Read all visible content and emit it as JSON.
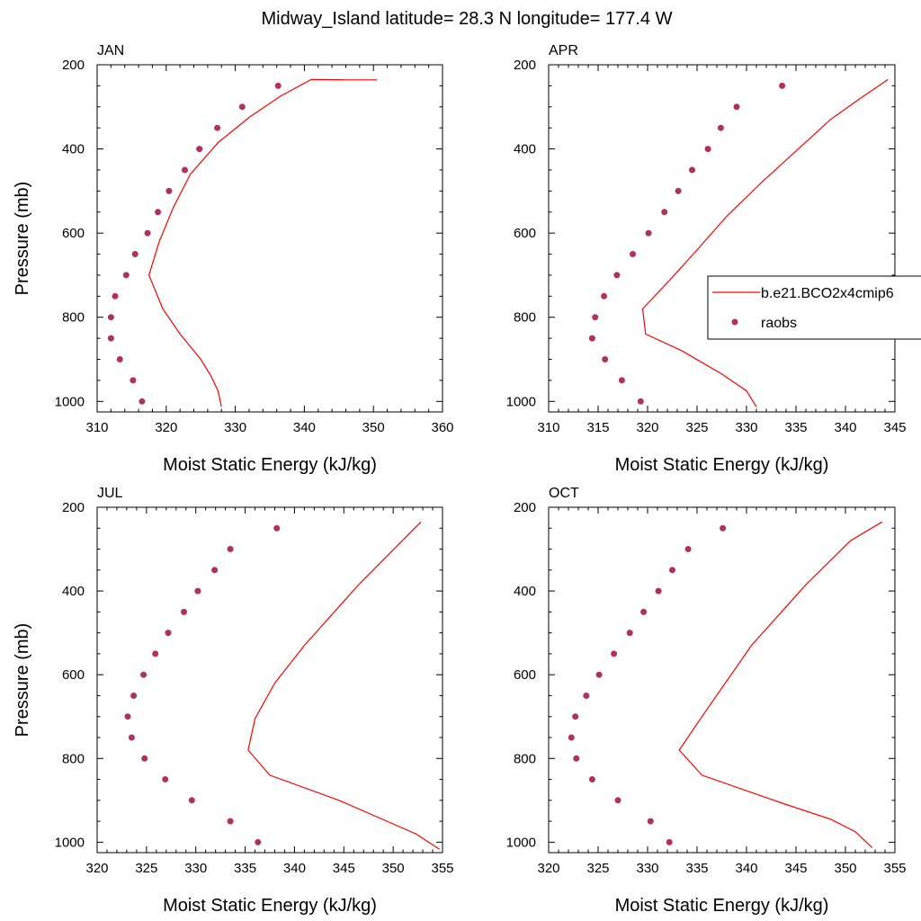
{
  "title": "Midway_Island  latitude= 28.3 N longitude= 177.4 W",
  "legend": {
    "model_label": "b.e21.BCO2x4cmip6",
    "obs_label": "raobs",
    "placement": "right, inside APR panel"
  },
  "colors": {
    "model": "#ff0000",
    "obs": "#b03060"
  },
  "chart_data": [
    {
      "type": "line+scatter",
      "panel": "JAN",
      "xlabel": "Moist Static Energy (kJ/kg)",
      "ylabel": "Pressure (mb)",
      "xlim": [
        310,
        360
      ],
      "ylim": [
        1025,
        200
      ],
      "xticks": [
        310,
        320,
        330,
        340,
        350,
        360
      ],
      "yticks": [
        200,
        400,
        600,
        800,
        1000
      ],
      "series": [
        {
          "name": "b.e21.BCO2x4cmip6",
          "kind": "line",
          "x": [
            328.0,
            327.5,
            326.5,
            325.0,
            322.0,
            319.5,
            317.5,
            319.0,
            321.0,
            323.5,
            327.5,
            332.0,
            336.5,
            341.0,
            346.0,
            350.5
          ],
          "y": [
            1013,
            975,
            940,
            900,
            840,
            780,
            700,
            620,
            540,
            460,
            385,
            325,
            275,
            235,
            236,
            236
          ]
        },
        {
          "name": "raobs",
          "kind": "scatter",
          "x": [
            316.5,
            315.2,
            313.3,
            312.0,
            312.0,
            312.6,
            314.2,
            315.5,
            317.3,
            318.8,
            320.4,
            322.7,
            324.8,
            327.4,
            331.0,
            336.2
          ],
          "y": [
            1000,
            950,
            900,
            850,
            800,
            750,
            700,
            650,
            600,
            550,
            500,
            450,
            400,
            350,
            300,
            250
          ]
        }
      ]
    },
    {
      "type": "line+scatter",
      "panel": "APR",
      "xlabel": "Moist Static Energy (kJ/kg)",
      "ylabel": "",
      "xlim": [
        310,
        345
      ],
      "ylim": [
        1025,
        200
      ],
      "xticks": [
        310,
        315,
        320,
        325,
        330,
        335,
        340,
        345
      ],
      "yticks": [
        200,
        400,
        600,
        800,
        1000
      ],
      "series": [
        {
          "name": "b.e21.BCO2x4cmip6",
          "kind": "line",
          "x": [
            331.0,
            330.0,
            327.5,
            323.5,
            319.8,
            319.5,
            322.5,
            325.0,
            328.0,
            331.5,
            335.0,
            338.5,
            341.5,
            344.3
          ],
          "y": [
            1013,
            975,
            935,
            880,
            840,
            780,
            705,
            640,
            560,
            480,
            405,
            330,
            280,
            235
          ]
        },
        {
          "name": "raobs",
          "kind": "scatter",
          "x": [
            319.3,
            317.4,
            315.7,
            314.4,
            314.7,
            315.6,
            316.9,
            318.5,
            320.1,
            321.7,
            323.1,
            324.5,
            326.1,
            327.4,
            329.0,
            333.6
          ],
          "y": [
            1000,
            950,
            900,
            850,
            800,
            750,
            700,
            650,
            600,
            550,
            500,
            450,
            400,
            350,
            300,
            250
          ]
        }
      ]
    },
    {
      "type": "line+scatter",
      "panel": "JUL",
      "xlabel": "Moist Static Energy (kJ/kg)",
      "ylabel": "Pressure (mb)",
      "xlim": [
        320,
        355
      ],
      "ylim": [
        1025,
        200
      ],
      "xticks": [
        320,
        325,
        330,
        335,
        340,
        345,
        350,
        355
      ],
      "yticks": [
        200,
        400,
        600,
        800,
        1000
      ],
      "series": [
        {
          "name": "b.e21.BCO2x4cmip6",
          "kind": "line",
          "x": [
            354.7,
            352.3,
            344.5,
            337.5,
            335.3,
            336.0,
            338.0,
            341.0,
            346.5,
            352.8
          ],
          "y": [
            1017,
            980,
            900,
            840,
            780,
            705,
            620,
            530,
            385,
            235
          ]
        },
        {
          "name": "raobs",
          "kind": "scatter",
          "x": [
            336.3,
            333.5,
            329.6,
            326.9,
            324.8,
            323.5,
            323.1,
            323.7,
            324.7,
            325.9,
            327.2,
            328.8,
            330.2,
            331.9,
            333.5,
            338.2
          ],
          "y": [
            1000,
            950,
            900,
            850,
            800,
            750,
            700,
            650,
            600,
            550,
            500,
            450,
            400,
            350,
            300,
            250
          ]
        }
      ]
    },
    {
      "type": "line+scatter",
      "panel": "OCT",
      "xlabel": "Moist Static Energy (kJ/kg)",
      "ylabel": "",
      "xlim": [
        320,
        355
      ],
      "ylim": [
        1025,
        200
      ],
      "xticks": [
        320,
        325,
        330,
        335,
        340,
        345,
        350,
        355
      ],
      "yticks": [
        200,
        400,
        600,
        800,
        1000
      ],
      "series": [
        {
          "name": "b.e21.BCO2x4cmip6",
          "kind": "line",
          "x": [
            352.7,
            351.0,
            348.5,
            344.0,
            335.5,
            333.2,
            335.5,
            340.5,
            346.0,
            350.5,
            353.7
          ],
          "y": [
            1013,
            975,
            945,
            910,
            840,
            780,
            700,
            530,
            385,
            280,
            235
          ]
        },
        {
          "name": "raobs",
          "kind": "scatter",
          "x": [
            332.2,
            330.3,
            327.0,
            324.4,
            322.8,
            322.3,
            322.7,
            323.8,
            325.1,
            326.6,
            328.2,
            329.6,
            331.1,
            332.5,
            334.1,
            337.6
          ],
          "y": [
            1000,
            950,
            900,
            850,
            800,
            750,
            700,
            650,
            600,
            550,
            500,
            450,
            400,
            350,
            300,
            250
          ]
        }
      ]
    }
  ]
}
